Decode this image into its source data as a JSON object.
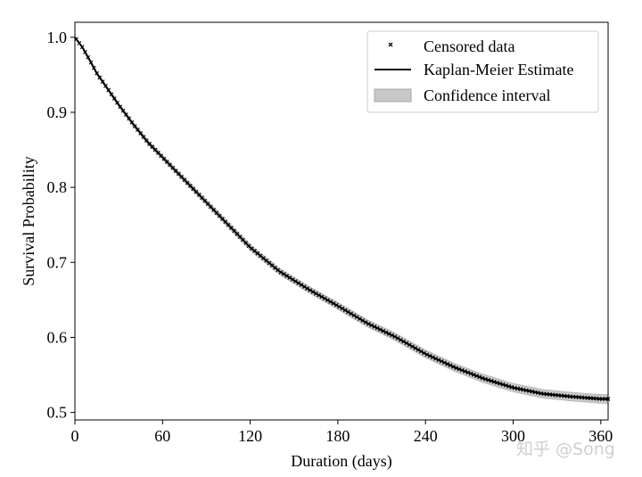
{
  "chart_data": {
    "type": "line",
    "xlabel": "Duration (days)",
    "ylabel": "Survival Probability",
    "xlim": [
      0,
      365
    ],
    "ylim": [
      0.49,
      1.02
    ],
    "xticks": [
      0,
      60,
      120,
      180,
      240,
      300,
      360
    ],
    "xtick_labels": [
      "0",
      "60",
      "120",
      "180",
      "240",
      "300",
      "360"
    ],
    "yticks": [
      0.5,
      0.6,
      0.7,
      0.8,
      0.9,
      1.0
    ],
    "ytick_labels": [
      "0.5",
      "0.6",
      "0.7",
      "0.8",
      "0.9",
      "1.0"
    ],
    "legend_position": "top-right",
    "legend": [
      {
        "label": "Censored data",
        "marker": "x"
      },
      {
        "label": "Kaplan-Meier Estimate",
        "marker": "line"
      },
      {
        "label": "Confidence interval",
        "marker": "patch"
      }
    ],
    "series": [
      {
        "name": "Kaplan-Meier Estimate",
        "x": [
          0,
          5,
          10,
          15,
          20,
          30,
          40,
          50,
          60,
          80,
          100,
          120,
          140,
          160,
          180,
          200,
          220,
          240,
          260,
          280,
          300,
          320,
          340,
          360,
          365
        ],
        "y": [
          1.0,
          0.987,
          0.97,
          0.952,
          0.938,
          0.91,
          0.884,
          0.86,
          0.84,
          0.8,
          0.76,
          0.72,
          0.688,
          0.664,
          0.642,
          0.619,
          0.6,
          0.578,
          0.56,
          0.545,
          0.533,
          0.525,
          0.521,
          0.518,
          0.518
        ]
      }
    ],
    "confidence_band_halfwidth": [
      0.0,
      0.001,
      0.0015,
      0.002,
      0.0022,
      0.0025,
      0.0028,
      0.003,
      0.0032,
      0.0035,
      0.0037,
      0.004,
      0.0042,
      0.0044,
      0.0046,
      0.0048,
      0.005,
      0.0052,
      0.0053,
      0.0055,
      0.0056,
      0.0057,
      0.0058,
      0.0059,
      0.006
    ],
    "colors": {
      "line": "#000000",
      "band": "#c8c8c8",
      "band_edge": "#a8a8a8"
    }
  },
  "watermark": "知乎 @Song"
}
